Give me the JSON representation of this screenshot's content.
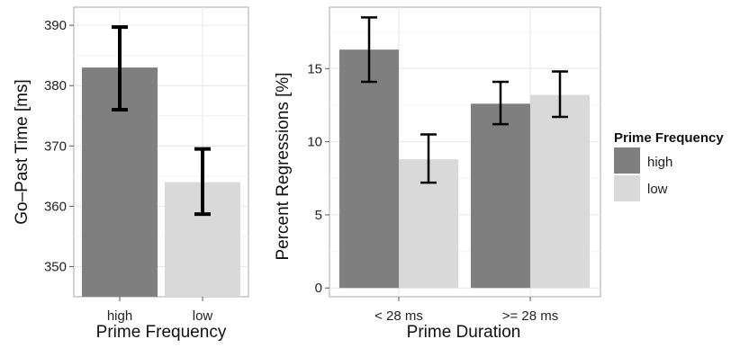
{
  "chart_data": [
    {
      "type": "bar",
      "xlabel": "Prime Frequency",
      "ylabel": "Go–Past Time [ms]",
      "categories": [
        "high",
        "low"
      ],
      "values": [
        383.0,
        364.0
      ],
      "error_low": [
        376.0,
        358.7
      ],
      "error_high": [
        389.7,
        369.5
      ],
      "bar_colors": [
        "#7f7f7f",
        "#d9d9d9"
      ],
      "ylim": [
        345,
        393
      ],
      "yticks": [
        350,
        360,
        370,
        380,
        390
      ],
      "grid": true
    },
    {
      "type": "bar",
      "xlabel": "Prime Duration",
      "ylabel": "Percent Regressions [%]",
      "categories": [
        "< 28 ms",
        ">= 28 ms"
      ],
      "series": [
        {
          "name": "high",
          "color": "#7f7f7f",
          "values": [
            16.3,
            12.6
          ],
          "error_low": [
            14.1,
            11.2
          ],
          "error_high": [
            18.5,
            14.1
          ]
        },
        {
          "name": "low",
          "color": "#d9d9d9",
          "values": [
            8.8,
            13.2
          ],
          "error_low": [
            7.2,
            11.7
          ],
          "error_high": [
            10.5,
            14.8
          ]
        }
      ],
      "ylim": [
        -0.6,
        19.2
      ],
      "yticks": [
        0,
        5,
        10,
        15
      ],
      "grid": true
    }
  ],
  "legend": {
    "title": "Prime Frequency",
    "placement": "right",
    "items": [
      {
        "label": "high",
        "color": "#7f7f7f"
      },
      {
        "label": "low",
        "color": "#d9d9d9"
      }
    ]
  }
}
